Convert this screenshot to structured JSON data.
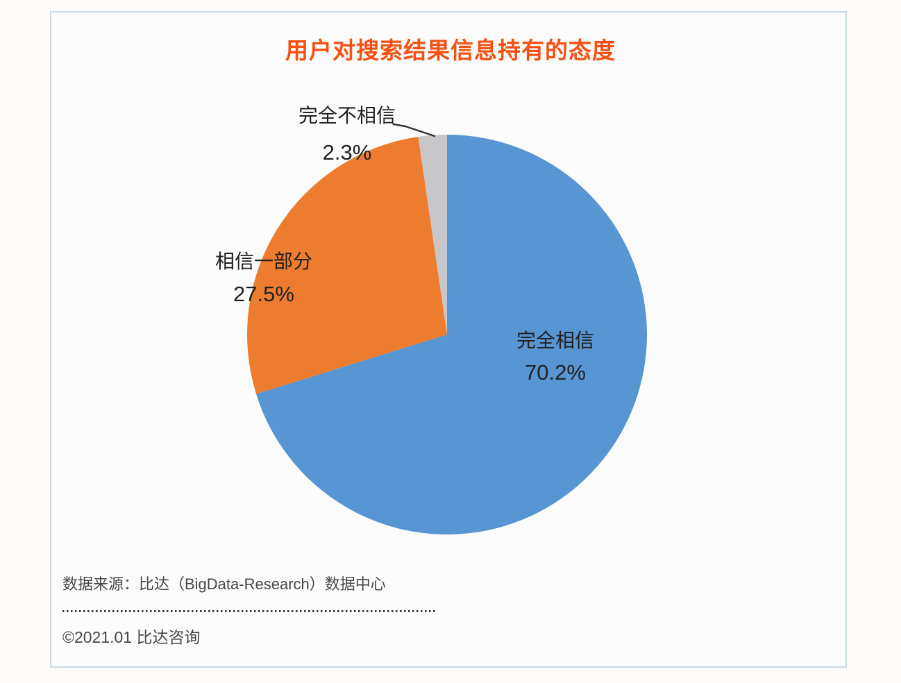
{
  "chart_data": {
    "type": "pie",
    "title": "用户对搜索结果信息持有的态度",
    "title_color": "#f75010",
    "unit": "%",
    "start_angle_deg": 0,
    "direction": "clockwise",
    "legend": "none",
    "slices": [
      {
        "label": "完全相信",
        "value": 70.2,
        "percent_label": "70.2%",
        "color": "#5795d3",
        "label_position": "inside"
      },
      {
        "label": "相信一部分",
        "value": 27.5,
        "percent_label": "27.5%",
        "color": "#ee7c2f",
        "label_position": "outside-left"
      },
      {
        "label": "完全不相信",
        "value": 2.3,
        "percent_label": "2.3%",
        "color": "#c7c7c9",
        "label_position": "outside-top-with-leader-line"
      }
    ],
    "leader_line_color": "#333333",
    "label_text_color": "#212121"
  },
  "footer": {
    "source": "数据来源：比达（BigData-Research）数据中心",
    "copyright": "©2021.01 比达咨询"
  }
}
